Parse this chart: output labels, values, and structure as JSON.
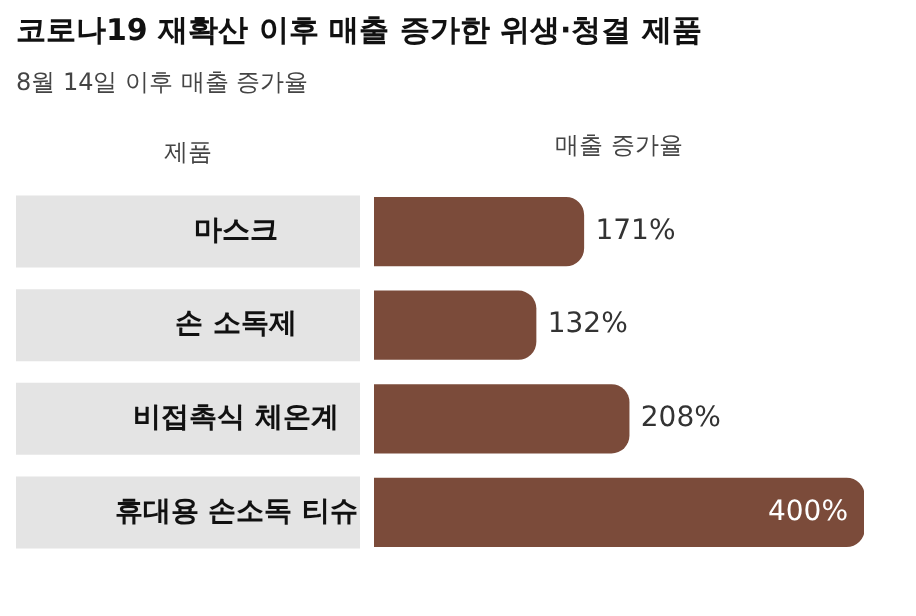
{
  "chart_data": {
    "type": "bar",
    "orientation": "horizontal",
    "title": "코로나19 재확산 이후 매출 증가한 위생·청결 제품",
    "subtitle": "8월 14일 이후 매출 증가율",
    "xlabel": "매출 증가율",
    "ylabel": "제품",
    "categories": [
      "마스크",
      "손 소독제",
      "비접촉식 체온계",
      "휴대용 손소독 티슈"
    ],
    "values": [
      171,
      132,
      208,
      400
    ],
    "color": "#7b4b3a",
    "value_labels": [
      "171%",
      "132%",
      "208%",
      "400%"
    ],
    "legend": false,
    "grid": false
  }
}
